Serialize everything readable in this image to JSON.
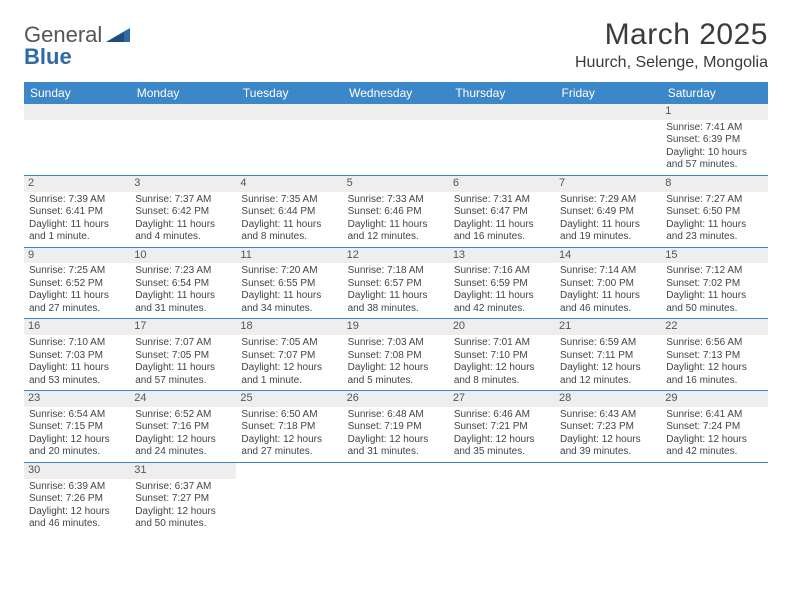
{
  "logo": {
    "text1": "General",
    "text2": "Blue"
  },
  "title": "March 2025",
  "location": "Huurch, Selenge, Mongolia",
  "dayHeaders": [
    "Sunday",
    "Monday",
    "Tuesday",
    "Wednesday",
    "Thursday",
    "Friday",
    "Saturday"
  ],
  "colors": {
    "headerBg": "#3b87c8",
    "headerText": "#ffffff",
    "dayNumBg": "#eeeeee",
    "border": "#3b87c8",
    "text": "#444444",
    "logoBlue": "#2f6aa8",
    "logoGray": "#555555"
  },
  "layout": {
    "columns": 7,
    "rows": 6,
    "fontSizeBody": 10,
    "fontSizeHeader": 12,
    "fontSizeTitle": 30,
    "fontSizeLocation": 16
  },
  "weeks": [
    [
      null,
      null,
      null,
      null,
      null,
      null,
      {
        "n": "1",
        "sunrise": "Sunrise: 7:41 AM",
        "sunset": "Sunset: 6:39 PM",
        "day1": "Daylight: 10 hours",
        "day2": "and 57 minutes."
      }
    ],
    [
      {
        "n": "2",
        "sunrise": "Sunrise: 7:39 AM",
        "sunset": "Sunset: 6:41 PM",
        "day1": "Daylight: 11 hours",
        "day2": "and 1 minute."
      },
      {
        "n": "3",
        "sunrise": "Sunrise: 7:37 AM",
        "sunset": "Sunset: 6:42 PM",
        "day1": "Daylight: 11 hours",
        "day2": "and 4 minutes."
      },
      {
        "n": "4",
        "sunrise": "Sunrise: 7:35 AM",
        "sunset": "Sunset: 6:44 PM",
        "day1": "Daylight: 11 hours",
        "day2": "and 8 minutes."
      },
      {
        "n": "5",
        "sunrise": "Sunrise: 7:33 AM",
        "sunset": "Sunset: 6:46 PM",
        "day1": "Daylight: 11 hours",
        "day2": "and 12 minutes."
      },
      {
        "n": "6",
        "sunrise": "Sunrise: 7:31 AM",
        "sunset": "Sunset: 6:47 PM",
        "day1": "Daylight: 11 hours",
        "day2": "and 16 minutes."
      },
      {
        "n": "7",
        "sunrise": "Sunrise: 7:29 AM",
        "sunset": "Sunset: 6:49 PM",
        "day1": "Daylight: 11 hours",
        "day2": "and 19 minutes."
      },
      {
        "n": "8",
        "sunrise": "Sunrise: 7:27 AM",
        "sunset": "Sunset: 6:50 PM",
        "day1": "Daylight: 11 hours",
        "day2": "and 23 minutes."
      }
    ],
    [
      {
        "n": "9",
        "sunrise": "Sunrise: 7:25 AM",
        "sunset": "Sunset: 6:52 PM",
        "day1": "Daylight: 11 hours",
        "day2": "and 27 minutes."
      },
      {
        "n": "10",
        "sunrise": "Sunrise: 7:23 AM",
        "sunset": "Sunset: 6:54 PM",
        "day1": "Daylight: 11 hours",
        "day2": "and 31 minutes."
      },
      {
        "n": "11",
        "sunrise": "Sunrise: 7:20 AM",
        "sunset": "Sunset: 6:55 PM",
        "day1": "Daylight: 11 hours",
        "day2": "and 34 minutes."
      },
      {
        "n": "12",
        "sunrise": "Sunrise: 7:18 AM",
        "sunset": "Sunset: 6:57 PM",
        "day1": "Daylight: 11 hours",
        "day2": "and 38 minutes."
      },
      {
        "n": "13",
        "sunrise": "Sunrise: 7:16 AM",
        "sunset": "Sunset: 6:59 PM",
        "day1": "Daylight: 11 hours",
        "day2": "and 42 minutes."
      },
      {
        "n": "14",
        "sunrise": "Sunrise: 7:14 AM",
        "sunset": "Sunset: 7:00 PM",
        "day1": "Daylight: 11 hours",
        "day2": "and 46 minutes."
      },
      {
        "n": "15",
        "sunrise": "Sunrise: 7:12 AM",
        "sunset": "Sunset: 7:02 PM",
        "day1": "Daylight: 11 hours",
        "day2": "and 50 minutes."
      }
    ],
    [
      {
        "n": "16",
        "sunrise": "Sunrise: 7:10 AM",
        "sunset": "Sunset: 7:03 PM",
        "day1": "Daylight: 11 hours",
        "day2": "and 53 minutes."
      },
      {
        "n": "17",
        "sunrise": "Sunrise: 7:07 AM",
        "sunset": "Sunset: 7:05 PM",
        "day1": "Daylight: 11 hours",
        "day2": "and 57 minutes."
      },
      {
        "n": "18",
        "sunrise": "Sunrise: 7:05 AM",
        "sunset": "Sunset: 7:07 PM",
        "day1": "Daylight: 12 hours",
        "day2": "and 1 minute."
      },
      {
        "n": "19",
        "sunrise": "Sunrise: 7:03 AM",
        "sunset": "Sunset: 7:08 PM",
        "day1": "Daylight: 12 hours",
        "day2": "and 5 minutes."
      },
      {
        "n": "20",
        "sunrise": "Sunrise: 7:01 AM",
        "sunset": "Sunset: 7:10 PM",
        "day1": "Daylight: 12 hours",
        "day2": "and 8 minutes."
      },
      {
        "n": "21",
        "sunrise": "Sunrise: 6:59 AM",
        "sunset": "Sunset: 7:11 PM",
        "day1": "Daylight: 12 hours",
        "day2": "and 12 minutes."
      },
      {
        "n": "22",
        "sunrise": "Sunrise: 6:56 AM",
        "sunset": "Sunset: 7:13 PM",
        "day1": "Daylight: 12 hours",
        "day2": "and 16 minutes."
      }
    ],
    [
      {
        "n": "23",
        "sunrise": "Sunrise: 6:54 AM",
        "sunset": "Sunset: 7:15 PM",
        "day1": "Daylight: 12 hours",
        "day2": "and 20 minutes."
      },
      {
        "n": "24",
        "sunrise": "Sunrise: 6:52 AM",
        "sunset": "Sunset: 7:16 PM",
        "day1": "Daylight: 12 hours",
        "day2": "and 24 minutes."
      },
      {
        "n": "25",
        "sunrise": "Sunrise: 6:50 AM",
        "sunset": "Sunset: 7:18 PM",
        "day1": "Daylight: 12 hours",
        "day2": "and 27 minutes."
      },
      {
        "n": "26",
        "sunrise": "Sunrise: 6:48 AM",
        "sunset": "Sunset: 7:19 PM",
        "day1": "Daylight: 12 hours",
        "day2": "and 31 minutes."
      },
      {
        "n": "27",
        "sunrise": "Sunrise: 6:46 AM",
        "sunset": "Sunset: 7:21 PM",
        "day1": "Daylight: 12 hours",
        "day2": "and 35 minutes."
      },
      {
        "n": "28",
        "sunrise": "Sunrise: 6:43 AM",
        "sunset": "Sunset: 7:23 PM",
        "day1": "Daylight: 12 hours",
        "day2": "and 39 minutes."
      },
      {
        "n": "29",
        "sunrise": "Sunrise: 6:41 AM",
        "sunset": "Sunset: 7:24 PM",
        "day1": "Daylight: 12 hours",
        "day2": "and 42 minutes."
      }
    ],
    [
      {
        "n": "30",
        "sunrise": "Sunrise: 6:39 AM",
        "sunset": "Sunset: 7:26 PM",
        "day1": "Daylight: 12 hours",
        "day2": "and 46 minutes."
      },
      {
        "n": "31",
        "sunrise": "Sunrise: 6:37 AM",
        "sunset": "Sunset: 7:27 PM",
        "day1": "Daylight: 12 hours",
        "day2": "and 50 minutes."
      },
      null,
      null,
      null,
      null,
      null
    ]
  ]
}
